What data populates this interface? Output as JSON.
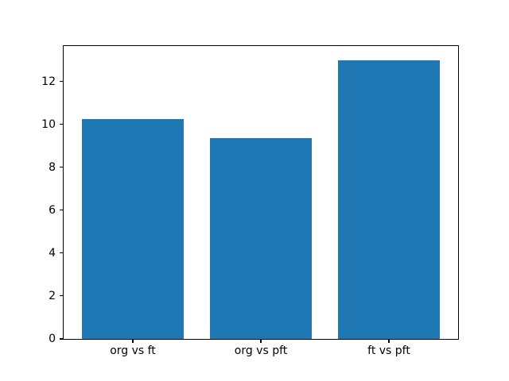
{
  "chart_data": {
    "type": "bar",
    "title": "",
    "xlabel": "",
    "ylabel": "",
    "categories": [
      "org vs ft",
      "org vs pft",
      "ft vs pft"
    ],
    "values": [
      10.25,
      9.36,
      13.0
    ],
    "bar_positions": [
      0,
      1,
      2
    ],
    "bar_width_fraction": 0.8,
    "bar_color": "#1f77b4",
    "xlim": [
      -0.54,
      2.54
    ],
    "ylim": [
      0,
      13.65
    ],
    "yticks": [
      0,
      2,
      4,
      6,
      8,
      10,
      12
    ],
    "grid": false,
    "legend_position": "none",
    "background_color": "#ffffff",
    "spine_color": "#000000"
  }
}
